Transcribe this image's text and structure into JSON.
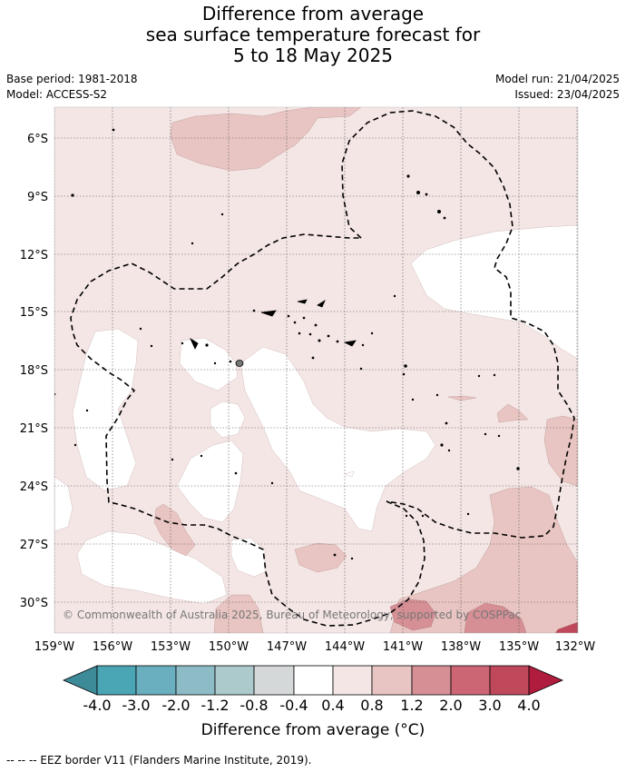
{
  "title": {
    "line1": "Difference from average",
    "line2": "sea surface temperature forecast for",
    "line3": "5 to 18 May 2025"
  },
  "meta": {
    "base_period": "Base period: 1981-2018",
    "model": "Model: ACCESS-S2",
    "model_run": "Model run: 21/04/2025",
    "issued": "Issued: 23/04/2025"
  },
  "lat_labels": [
    "6°S",
    "9°S",
    "12°S",
    "15°S",
    "18°S",
    "21°S",
    "24°S",
    "27°S",
    "30°S"
  ],
  "lon_labels": [
    "159°W",
    "156°W",
    "153°W",
    "150°W",
    "147°W",
    "144°W",
    "141°W",
    "138°W",
    "135°W",
    "132°W"
  ],
  "copyright": "© Commonwealth of Australia 2025, Bureau of Meteorology, supported by COSPPac",
  "colorbar": {
    "ticks": [
      "-4.0",
      "-3.0",
      "-2.0",
      "-1.2",
      "-0.8",
      "-0.4",
      "0.4",
      "0.8",
      "1.2",
      "2.0",
      "3.0",
      "4.0"
    ],
    "colors": [
      "#3d8a98",
      "#4aa5b4",
      "#6aafbf",
      "#8dbcc7",
      "#acc9cc",
      "#d4d8d9",
      "#ffffff",
      "#f4e6e5",
      "#e8c5c2",
      "#d58f95",
      "#cc6674",
      "#c0485b",
      "#b01c3e"
    ],
    "label": "Difference from average (°C)"
  },
  "footer": "-- -- -- EEZ border V11 (Flanders Marine Institute, 2019)."
}
